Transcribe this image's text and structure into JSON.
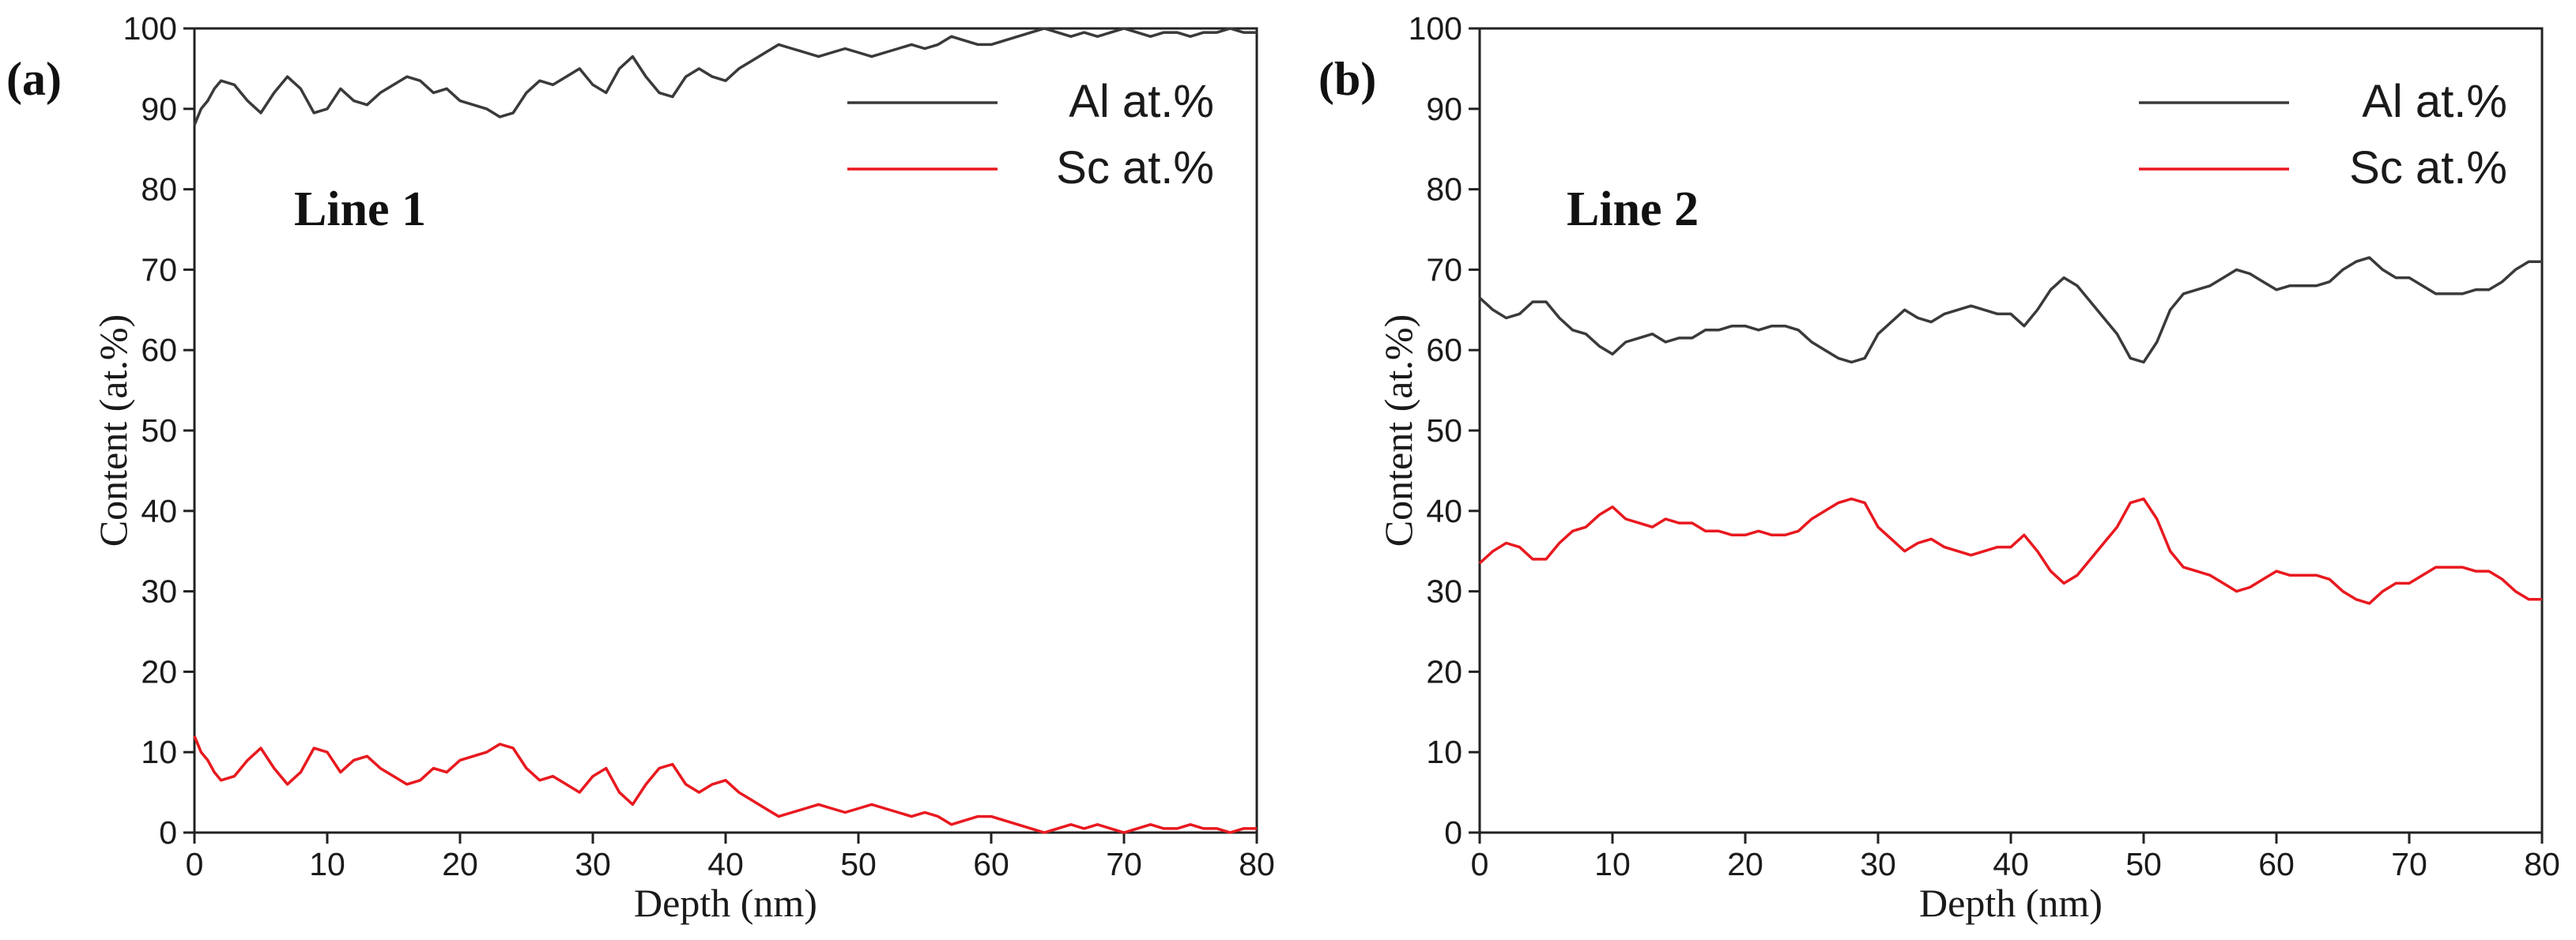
{
  "chart_data": [
    {
      "type": "line",
      "panel_label": "(a)",
      "annotation": "Line 1",
      "xlabel": "Depth (nm)",
      "ylabel": "Content (at.%)",
      "xlim": [
        0,
        80
      ],
      "ylim": [
        0,
        100
      ],
      "xticks": [
        0,
        10,
        20,
        30,
        40,
        50,
        60,
        70,
        80
      ],
      "yticks": [
        0,
        10,
        20,
        30,
        40,
        50,
        60,
        70,
        80,
        90,
        100
      ],
      "grid": false,
      "legend_position": "top-right",
      "series": [
        {
          "name": "Al at.%",
          "color": "#3a3a3a",
          "x": [
            0,
            0.5,
            1,
            1.5,
            2,
            3,
            4,
            5,
            6,
            7,
            8,
            9,
            10,
            11,
            12,
            13,
            14,
            15,
            16,
            17,
            18,
            19,
            20,
            21,
            22,
            23,
            24,
            25,
            26,
            27,
            28,
            29,
            30,
            31,
            32,
            33,
            34,
            35,
            36,
            37,
            38,
            39,
            40,
            41,
            42,
            43,
            44,
            45,
            46,
            47,
            48,
            49,
            50,
            51,
            52,
            53,
            54,
            55,
            56,
            57,
            58,
            59,
            60,
            61,
            62,
            63,
            64,
            65,
            66,
            67,
            68,
            69,
            70,
            71,
            72,
            73,
            74,
            75,
            76,
            77,
            78,
            79,
            80
          ],
          "y": [
            88,
            90,
            91,
            92.5,
            93.5,
            93,
            91,
            89.5,
            92,
            94,
            92.5,
            89.5,
            90,
            92.5,
            91,
            90.5,
            92,
            93,
            94,
            93.5,
            92,
            92.5,
            91,
            90.5,
            90,
            89,
            89.5,
            92,
            93.5,
            93,
            94,
            95,
            93,
            92,
            95,
            96.5,
            94,
            92,
            91.5,
            94,
            95,
            94,
            93.5,
            95,
            96,
            97,
            98,
            97.5,
            97,
            96.5,
            97,
            97.5,
            97,
            96.5,
            97,
            97.5,
            98,
            97.5,
            98,
            99,
            98.5,
            98,
            98,
            98.5,
            99,
            99.5,
            100,
            99.5,
            99,
            99.5,
            99,
            99.5,
            100,
            99.5,
            99,
            99.5,
            99.5,
            99,
            99.5,
            99.5,
            100,
            99.5,
            99.5
          ]
        },
        {
          "name": "Sc at.%",
          "color": "#e8191f",
          "x": [
            0,
            0.5,
            1,
            1.5,
            2,
            3,
            4,
            5,
            6,
            7,
            8,
            9,
            10,
            11,
            12,
            13,
            14,
            15,
            16,
            17,
            18,
            19,
            20,
            21,
            22,
            23,
            24,
            25,
            26,
            27,
            28,
            29,
            30,
            31,
            32,
            33,
            34,
            35,
            36,
            37,
            38,
            39,
            40,
            41,
            42,
            43,
            44,
            45,
            46,
            47,
            48,
            49,
            50,
            51,
            52,
            53,
            54,
            55,
            56,
            57,
            58,
            59,
            60,
            61,
            62,
            63,
            64,
            65,
            66,
            67,
            68,
            69,
            70,
            71,
            72,
            73,
            74,
            75,
            76,
            77,
            78,
            79,
            80
          ],
          "y": [
            12,
            10,
            9,
            7.5,
            6.5,
            7,
            9,
            10.5,
            8,
            6,
            7.5,
            10.5,
            10,
            7.5,
            9,
            9.5,
            8,
            7,
            6,
            6.5,
            8,
            7.5,
            9,
            9.5,
            10,
            11,
            10.5,
            8,
            6.5,
            7,
            6,
            5,
            7,
            8,
            5,
            3.5,
            6,
            8,
            8.5,
            6,
            5,
            6,
            6.5,
            5,
            4,
            3,
            2,
            2.5,
            3,
            3.5,
            3,
            2.5,
            3,
            3.5,
            3,
            2.5,
            2,
            2.5,
            2,
            1,
            1.5,
            2,
            2,
            1.5,
            1,
            0.5,
            0,
            0.5,
            1,
            0.5,
            1,
            0.5,
            0,
            0.5,
            1,
            0.5,
            0.5,
            1,
            0.5,
            0.5,
            0,
            0.5,
            0.5
          ]
        }
      ]
    },
    {
      "type": "line",
      "panel_label": "(b)",
      "annotation": "Line 2",
      "xlabel": "Depth (nm)",
      "ylabel": "Content (at.%)",
      "xlim": [
        0,
        80
      ],
      "ylim": [
        0,
        100
      ],
      "xticks": [
        0,
        10,
        20,
        30,
        40,
        50,
        60,
        70,
        80
      ],
      "yticks": [
        0,
        10,
        20,
        30,
        40,
        50,
        60,
        70,
        80,
        90,
        100
      ],
      "grid": false,
      "legend_position": "top-right",
      "series": [
        {
          "name": "Al at.%",
          "color": "#3a3a3a",
          "x": [
            0,
            1,
            2,
            3,
            4,
            5,
            6,
            7,
            8,
            9,
            10,
            11,
            12,
            13,
            14,
            15,
            16,
            17,
            18,
            19,
            20,
            21,
            22,
            23,
            24,
            25,
            26,
            27,
            28,
            29,
            30,
            31,
            32,
            33,
            34,
            35,
            36,
            37,
            38,
            39,
            40,
            41,
            42,
            43,
            44,
            45,
            46,
            47,
            48,
            49,
            50,
            51,
            52,
            53,
            54,
            55,
            56,
            57,
            58,
            59,
            60,
            61,
            62,
            63,
            64,
            65,
            66,
            67,
            68,
            69,
            70,
            71,
            72,
            73,
            74,
            75,
            76,
            77,
            78,
            79,
            80
          ],
          "y": [
            66.5,
            65,
            64,
            64.5,
            66,
            66,
            64,
            62.5,
            62,
            60.5,
            59.5,
            61,
            61.5,
            62,
            61,
            61.5,
            61.5,
            62.5,
            62.5,
            63,
            63,
            62.5,
            63,
            63,
            62.5,
            61,
            60,
            59,
            58.5,
            59,
            62,
            63.5,
            65,
            64,
            63.5,
            64.5,
            65,
            65.5,
            65,
            64.5,
            64.5,
            63,
            65,
            67.5,
            69,
            68,
            66,
            64,
            62,
            59,
            58.5,
            61,
            65,
            67,
            67.5,
            68,
            69,
            70,
            69.5,
            68.5,
            67.5,
            68,
            68,
            68,
            68.5,
            70,
            71,
            71.5,
            70,
            69,
            69,
            68,
            67,
            67,
            67,
            67.5,
            67.5,
            68.5,
            70,
            71,
            71
          ]
        },
        {
          "name": "Sc at.%",
          "color": "#e8191f",
          "x": [
            0,
            1,
            2,
            3,
            4,
            5,
            6,
            7,
            8,
            9,
            10,
            11,
            12,
            13,
            14,
            15,
            16,
            17,
            18,
            19,
            20,
            21,
            22,
            23,
            24,
            25,
            26,
            27,
            28,
            29,
            30,
            31,
            32,
            33,
            34,
            35,
            36,
            37,
            38,
            39,
            40,
            41,
            42,
            43,
            44,
            45,
            46,
            47,
            48,
            49,
            50,
            51,
            52,
            53,
            54,
            55,
            56,
            57,
            58,
            59,
            60,
            61,
            62,
            63,
            64,
            65,
            66,
            67,
            68,
            69,
            70,
            71,
            72,
            73,
            74,
            75,
            76,
            77,
            78,
            79,
            80
          ],
          "y": [
            33.5,
            35,
            36,
            35.5,
            34,
            34,
            36,
            37.5,
            38,
            39.5,
            40.5,
            39,
            38.5,
            38,
            39,
            38.5,
            38.5,
            37.5,
            37.5,
            37,
            37,
            37.5,
            37,
            37,
            37.5,
            39,
            40,
            41,
            41.5,
            41,
            38,
            36.5,
            35,
            36,
            36.5,
            35.5,
            35,
            34.5,
            35,
            35.5,
            35.5,
            37,
            35,
            32.5,
            31,
            32,
            34,
            36,
            38,
            41,
            41.5,
            39,
            35,
            33,
            32.5,
            32,
            31,
            30,
            30.5,
            31.5,
            32.5,
            32,
            32,
            32,
            31.5,
            30,
            29,
            28.5,
            30,
            31,
            31,
            32,
            33,
            33,
            33,
            32.5,
            32.5,
            31.5,
            30,
            29,
            29
          ]
        }
      ]
    }
  ]
}
